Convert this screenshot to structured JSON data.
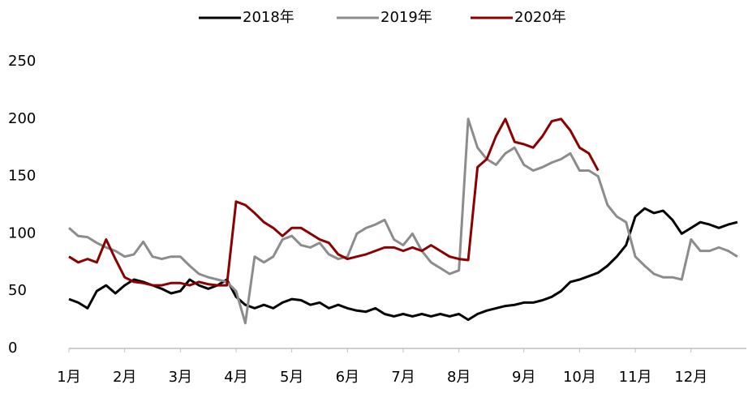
{
  "chart_data": {
    "type": "line",
    "categories": [
      "1月",
      null,
      null,
      null,
      null,
      null,
      "2月",
      null,
      null,
      null,
      null,
      null,
      "3月",
      null,
      null,
      null,
      null,
      null,
      "4月",
      null,
      null,
      null,
      null,
      null,
      "5月",
      null,
      null,
      null,
      null,
      null,
      "6月",
      null,
      null,
      null,
      null,
      null,
      "7月",
      null,
      null,
      null,
      null,
      null,
      "8月",
      null,
      null,
      null,
      null,
      null,
      null,
      "9月",
      null,
      null,
      null,
      null,
      null,
      "10月",
      null,
      null,
      null,
      null,
      null,
      "11月",
      null,
      null,
      null,
      null,
      null,
      "12月",
      null,
      null,
      null,
      null,
      null
    ],
    "series": [
      {
        "name": "2018年",
        "color": "#000000",
        "values": [
          43,
          40,
          35,
          50,
          55,
          48,
          55,
          60,
          58,
          55,
          52,
          48,
          50,
          60,
          55,
          52,
          55,
          60,
          45,
          38,
          35,
          38,
          35,
          40,
          43,
          42,
          38,
          40,
          35,
          38,
          35,
          33,
          32,
          35,
          30,
          28,
          30,
          28,
          30,
          28,
          30,
          28,
          30,
          25,
          30,
          33,
          35,
          37,
          38,
          40,
          40,
          42,
          45,
          50,
          58,
          60,
          63,
          66,
          72,
          80,
          90,
          115,
          122,
          118,
          120,
          112,
          100,
          105,
          110,
          108,
          105,
          108,
          110
        ]
      },
      {
        "name": "2019年",
        "color": "#8c8c8c",
        "values": [
          105,
          98,
          97,
          92,
          88,
          85,
          80,
          82,
          93,
          80,
          78,
          80,
          80,
          72,
          65,
          62,
          60,
          58,
          50,
          22,
          80,
          75,
          80,
          95,
          98,
          90,
          88,
          92,
          82,
          78,
          80,
          100,
          105,
          108,
          112,
          95,
          90,
          100,
          85,
          75,
          70,
          65,
          68,
          200,
          175,
          165,
          160,
          170,
          175,
          160,
          155,
          158,
          162,
          165,
          170,
          155,
          155,
          150,
          125,
          115,
          110,
          80,
          72,
          65,
          62,
          62,
          60,
          95,
          85,
          85,
          88,
          85,
          80
        ]
      },
      {
        "name": "2020年",
        "color": "#8b0000",
        "values": [
          80,
          75,
          78,
          75,
          95,
          78,
          62,
          58,
          57,
          55,
          55,
          57,
          57,
          55,
          58,
          56,
          55,
          55,
          128,
          125,
          118,
          110,
          105,
          98,
          105,
          105,
          100,
          95,
          92,
          82,
          78,
          80,
          82,
          85,
          88,
          88,
          85,
          88,
          85,
          90,
          85,
          80,
          78,
          77,
          158,
          165,
          185,
          200,
          180,
          178,
          175,
          185,
          198,
          200,
          190,
          175,
          170,
          155,
          null,
          null,
          null,
          null,
          null,
          null,
          null,
          null,
          null,
          null,
          null,
          null,
          null,
          null,
          null
        ]
      }
    ],
    "ylim": [
      0,
      250
    ],
    "yticks": [
      0,
      50,
      100,
      150,
      200,
      250
    ],
    "grid": false,
    "legend": "top"
  }
}
